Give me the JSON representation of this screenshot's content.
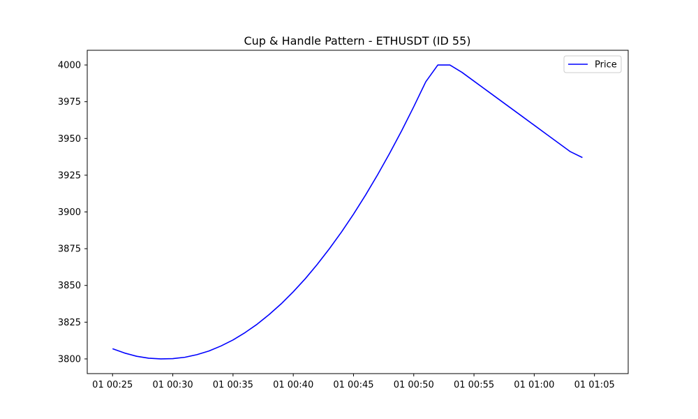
{
  "chart_data": {
    "type": "line",
    "title": "Cup & Handle Pattern - ETHUSDT (ID 55)",
    "xlabel": "",
    "ylabel": "",
    "x_unit": "minutes",
    "x_range": [
      "00:23",
      "01:07"
    ],
    "xlim": [
      22.9,
      67.8
    ],
    "ylim": [
      3790,
      4010
    ],
    "x_ticks": [
      {
        "value": 25,
        "label": "01 00:25"
      },
      {
        "value": 30,
        "label": "01 00:30"
      },
      {
        "value": 35,
        "label": "01 00:35"
      },
      {
        "value": 40,
        "label": "01 00:40"
      },
      {
        "value": 45,
        "label": "01 00:45"
      },
      {
        "value": 50,
        "label": "01 00:50"
      },
      {
        "value": 55,
        "label": "01 00:55"
      },
      {
        "value": 60,
        "label": "01 01:00"
      },
      {
        "value": 65,
        "label": "01 01:05"
      }
    ],
    "y_ticks": [
      {
        "value": 3800,
        "label": "3800"
      },
      {
        "value": 3825,
        "label": "3825"
      },
      {
        "value": 3850,
        "label": "3850"
      },
      {
        "value": 3875,
        "label": "3875"
      },
      {
        "value": 3900,
        "label": "3900"
      },
      {
        "value": 3925,
        "label": "3925"
      },
      {
        "value": 3950,
        "label": "3950"
      },
      {
        "value": 3975,
        "label": "3975"
      },
      {
        "value": 4000,
        "label": "4000"
      }
    ],
    "grid": false,
    "legend": {
      "position": "top-right",
      "entries": [
        "Price"
      ]
    },
    "series": [
      {
        "name": "Price",
        "color": "#0000ff",
        "points": [
          {
            "x": "01 00:25",
            "y": 3806.9
          },
          {
            "x": "01 00:26",
            "y": 3804.0
          },
          {
            "x": "01 00:27",
            "y": 3801.8
          },
          {
            "x": "01 00:28",
            "y": 3800.5
          },
          {
            "x": "01 00:29",
            "y": 3800.0
          },
          {
            "x": "01 00:30",
            "y": 3800.2
          },
          {
            "x": "01 00:31",
            "y": 3801.1
          },
          {
            "x": "01 00:32",
            "y": 3802.9
          },
          {
            "x": "01 00:33",
            "y": 3805.4
          },
          {
            "x": "01 00:34",
            "y": 3808.8
          },
          {
            "x": "01 00:35",
            "y": 3812.9
          },
          {
            "x": "01 00:36",
            "y": 3817.9
          },
          {
            "x": "01 00:37",
            "y": 3823.6
          },
          {
            "x": "01 00:38",
            "y": 3830.2
          },
          {
            "x": "01 00:39",
            "y": 3837.5
          },
          {
            "x": "01 00:40",
            "y": 3845.7
          },
          {
            "x": "01 00:41",
            "y": 3854.6
          },
          {
            "x": "01 00:42",
            "y": 3864.4
          },
          {
            "x": "01 00:43",
            "y": 3875.0
          },
          {
            "x": "01 00:44",
            "y": 3886.3
          },
          {
            "x": "01 00:45",
            "y": 3898.5
          },
          {
            "x": "01 00:46",
            "y": 3911.5
          },
          {
            "x": "01 00:47",
            "y": 3925.3
          },
          {
            "x": "01 00:48",
            "y": 3939.9
          },
          {
            "x": "01 00:49",
            "y": 3955.3
          },
          {
            "x": "01 00:50",
            "y": 3971.6
          },
          {
            "x": "01 00:51",
            "y": 3988.6
          },
          {
            "x": "01 00:52",
            "y": 4000.0
          },
          {
            "x": "01 00:53",
            "y": 4000.0
          },
          {
            "x": "01 00:54",
            "y": 3995.0
          },
          {
            "x": "01 00:55",
            "y": 3989.0
          },
          {
            "x": "01 00:56",
            "y": 3983.0
          },
          {
            "x": "01 00:57",
            "y": 3977.0
          },
          {
            "x": "01 00:58",
            "y": 3971.0
          },
          {
            "x": "01 00:59",
            "y": 3965.0
          },
          {
            "x": "01 01:00",
            "y": 3959.0
          },
          {
            "x": "01 01:01",
            "y": 3953.0
          },
          {
            "x": "01 01:02",
            "y": 3947.0
          },
          {
            "x": "01 01:03",
            "y": 3941.0
          },
          {
            "x": "01 01:04",
            "y": 3937.0
          }
        ]
      }
    ]
  }
}
